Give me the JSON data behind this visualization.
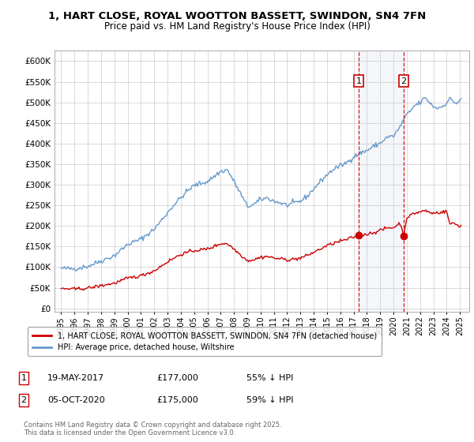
{
  "title": "1, HART CLOSE, ROYAL WOOTTON BASSETT, SWINDON, SN4 7FN",
  "subtitle": "Price paid vs. HM Land Registry's House Price Index (HPI)",
  "hpi_color": "#6699cc",
  "price_color": "#cc0000",
  "span_color": "#aabbdd",
  "marker1_date_x": 2017.38,
  "marker2_date_x": 2020.76,
  "marker1_price_y": 177000,
  "marker2_price_y": 175000,
  "background_color": "#ffffff",
  "grid_color": "#cccccc",
  "legend_label_price": "1, HART CLOSE, ROYAL WOOTTON BASSETT, SWINDON, SN4 7FN (detached house)",
  "legend_label_hpi": "HPI: Average price, detached house, Wiltshire",
  "footer": "Contains HM Land Registry data © Crown copyright and database right 2025.\nThis data is licensed under the Open Government Licence v3.0.",
  "yticks": [
    0,
    50000,
    100000,
    150000,
    200000,
    250000,
    300000,
    350000,
    400000,
    450000,
    500000,
    550000,
    600000
  ],
  "xlim_min": 1994.5,
  "xlim_max": 2025.7,
  "ylim_min": -8000,
  "ylim_max": 625000
}
